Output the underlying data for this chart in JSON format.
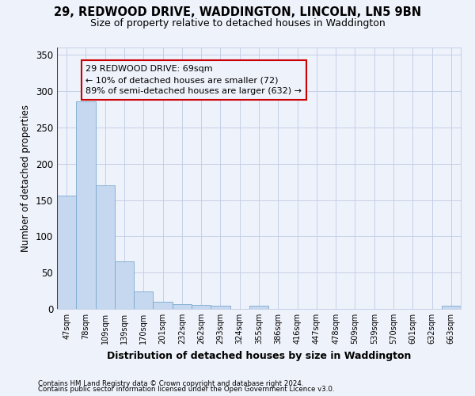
{
  "title1": "29, REDWOOD DRIVE, WADDINGTON, LINCOLN, LN5 9BN",
  "title2": "Size of property relative to detached houses in Waddington",
  "xlabel": "Distribution of detached houses by size in Waddington",
  "ylabel": "Number of detached properties",
  "bar_color": "#c5d8ef",
  "bar_edgecolor": "#7aaad0",
  "annotation_line_color": "#cc0000",
  "annotation_box_color": "#cc0000",
  "annotation_text": "29 REDWOOD DRIVE: 69sqm\n← 10% of detached houses are smaller (72)\n89% of semi-detached houses are larger (632) →",
  "categories": [
    "47sqm",
    "78sqm",
    "109sqm",
    "139sqm",
    "170sqm",
    "201sqm",
    "232sqm",
    "262sqm",
    "293sqm",
    "324sqm",
    "355sqm",
    "386sqm",
    "416sqm",
    "447sqm",
    "478sqm",
    "509sqm",
    "539sqm",
    "570sqm",
    "601sqm",
    "632sqm",
    "663sqm"
  ],
  "values": [
    156,
    286,
    170,
    65,
    24,
    10,
    7,
    5,
    4,
    0,
    4,
    0,
    0,
    0,
    0,
    0,
    0,
    0,
    0,
    0,
    4
  ],
  "ylim": [
    0,
    360
  ],
  "yticks": [
    0,
    50,
    100,
    150,
    200,
    250,
    300,
    350
  ],
  "footer1": "Contains HM Land Registry data © Crown copyright and database right 2024.",
  "footer2": "Contains public sector information licensed under the Open Government Licence v3.0.",
  "background_color": "#eef2fa",
  "grid_color": "#c5cfe8"
}
